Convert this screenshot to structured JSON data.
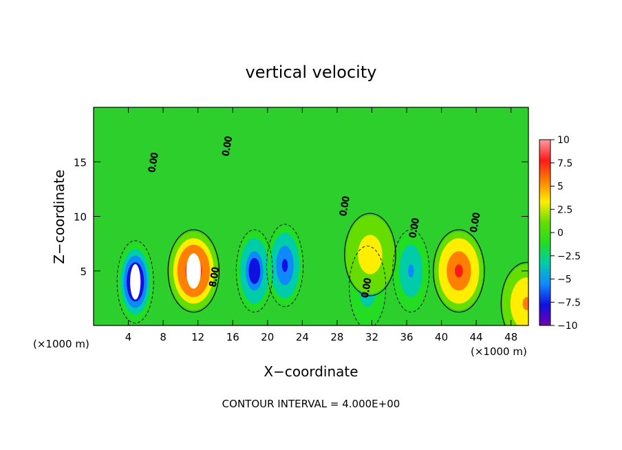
{
  "chart_data": {
    "type": "heatmap",
    "title": "vertical velocity",
    "xlabel": "X−coordinate",
    "ylabel": "Z−coordinate",
    "x_unit_left": "(×1000 m)",
    "x_unit_right": "(×1000 m)",
    "footer": "CONTOUR INTERVAL = 4.000E+00",
    "xlim": [
      0,
      50
    ],
    "ylim": [
      0,
      20
    ],
    "x_ticks": [
      4,
      8,
      12,
      16,
      20,
      24,
      28,
      32,
      36,
      40,
      44,
      48
    ],
    "y_ticks": [
      5,
      10,
      15
    ],
    "colorbar": {
      "range": [
        -10,
        10
      ],
      "ticks": [
        10,
        7.5,
        5,
        2.5,
        0,
        -2.5,
        -5,
        -7.5,
        -10
      ],
      "tick_labels": [
        "10",
        "7.5",
        "5",
        "2.5",
        "0",
        "−2.5",
        "−5",
        "−7.5",
        "−10"
      ],
      "colors": [
        "#ff9aa0",
        "#ff1a1a",
        "#ff8000",
        "#ffee00",
        "#66dd00",
        "#22dd22",
        "#00ccaa",
        "#1088ff",
        "#1010e0",
        "#7000b0"
      ]
    },
    "contour_labels": [
      "0.00",
      "0.00",
      "0.00",
      "0.00",
      "0.00",
      "0.00",
      "8.00"
    ],
    "features": [
      {
        "kind": "updraft",
        "x": 11.5,
        "z": 5.0,
        "peak": 10
      },
      {
        "kind": "downdraft",
        "x": 4.8,
        "z": 4.0,
        "peak": -10
      },
      {
        "kind": "downdraft",
        "x": 18.5,
        "z": 5.0,
        "peak": -8.5
      },
      {
        "kind": "downdraft",
        "x": 22.0,
        "z": 5.5,
        "peak": -7.5
      },
      {
        "kind": "downdraft",
        "x": 36.5,
        "z": 5.0,
        "peak": -5
      },
      {
        "kind": "downdraft",
        "x": 31.5,
        "z": 3.5,
        "peak": -4
      },
      {
        "kind": "updraft",
        "x": 42.0,
        "z": 5.0,
        "peak": 7.5
      },
      {
        "kind": "updraft",
        "x": 49.8,
        "z": 2.0,
        "peak": 5
      },
      {
        "kind": "updraft",
        "x": 31.8,
        "z": 6.5,
        "peak": 4
      }
    ]
  }
}
